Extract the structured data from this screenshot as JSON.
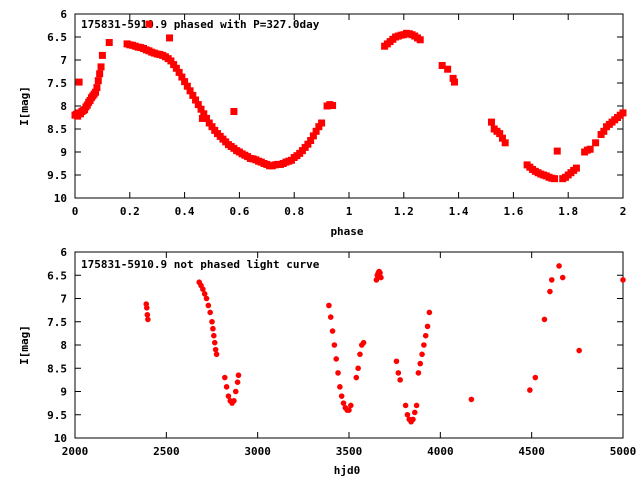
{
  "chart_data": [
    {
      "type": "scatter",
      "title": "175831-5910.9 phased with P=327.0day",
      "xlabel": "phase",
      "ylabel": "I[mag]",
      "xlim": [
        0,
        2
      ],
      "ylim": [
        10,
        6
      ],
      "y_inverted": true,
      "x_ticks": [
        "0",
        "0.2",
        "0.4",
        "0.6",
        "0.8",
        "1",
        "1.2",
        "1.4",
        "1.6",
        "1.8",
        "2"
      ],
      "y_ticks": [
        "6",
        "6.5",
        "7",
        "7.5",
        "8",
        "8.5",
        "9",
        "9.5",
        "10"
      ],
      "grid": false,
      "marker_color": "#ff0000",
      "series": [
        {
          "points": [
            [
              0.0,
              8.2
            ],
            [
              0.005,
              8.18
            ],
            [
              0.01,
              8.22
            ],
            [
              0.015,
              8.15
            ],
            [
              0.02,
              8.17
            ],
            [
              0.025,
              8.12
            ],
            [
              0.03,
              8.1
            ],
            [
              0.035,
              8.08
            ],
            [
              0.04,
              8.02
            ],
            [
              0.045,
              7.98
            ],
            [
              0.05,
              7.92
            ],
            [
              0.055,
              7.88
            ],
            [
              0.06,
              7.82
            ],
            [
              0.065,
              7.78
            ],
            [
              0.07,
              7.74
            ],
            [
              0.075,
              7.7
            ],
            [
              0.08,
              7.6
            ],
            [
              0.085,
              7.45
            ],
            [
              0.09,
              7.3
            ],
            [
              0.095,
              7.15
            ],
            [
              0.1,
              6.9
            ],
            [
              0.125,
              6.62
            ],
            [
              0.015,
              7.48
            ],
            [
              0.19,
              6.65
            ],
            [
              0.2,
              6.67
            ],
            [
              0.21,
              6.68
            ],
            [
              0.22,
              6.7
            ],
            [
              0.23,
              6.72
            ],
            [
              0.24,
              6.73
            ],
            [
              0.25,
              6.75
            ],
            [
              0.26,
              6.78
            ],
            [
              0.27,
              6.8
            ],
            [
              0.28,
              6.83
            ],
            [
              0.29,
              6.85
            ],
            [
              0.3,
              6.87
            ],
            [
              0.31,
              6.88
            ],
            [
              0.32,
              6.9
            ],
            [
              0.33,
              6.93
            ],
            [
              0.34,
              6.97
            ],
            [
              0.35,
              7.02
            ],
            [
              0.36,
              7.1
            ],
            [
              0.37,
              7.18
            ],
            [
              0.38,
              7.27
            ],
            [
              0.39,
              7.37
            ],
            [
              0.4,
              7.47
            ],
            [
              0.41,
              7.57
            ],
            [
              0.42,
              7.67
            ],
            [
              0.43,
              7.77
            ],
            [
              0.44,
              7.87
            ],
            [
              0.45,
              7.97
            ],
            [
              0.46,
              8.07
            ],
            [
              0.47,
              8.17
            ],
            [
              0.48,
              8.27
            ],
            [
              0.49,
              8.37
            ],
            [
              0.5,
              8.45
            ],
            [
              0.51,
              8.53
            ],
            [
              0.52,
              8.6
            ],
            [
              0.53,
              8.66
            ],
            [
              0.54,
              8.72
            ],
            [
              0.55,
              8.78
            ],
            [
              0.56,
              8.84
            ],
            [
              0.57,
              8.88
            ],
            [
              0.58,
              8.92
            ],
            [
              0.59,
              8.97
            ],
            [
              0.6,
              9.0
            ],
            [
              0.61,
              9.04
            ],
            [
              0.62,
              9.07
            ],
            [
              0.63,
              9.1
            ],
            [
              0.64,
              9.14
            ],
            [
              0.65,
              9.15
            ],
            [
              0.66,
              9.17
            ],
            [
              0.67,
              9.2
            ],
            [
              0.68,
              9.22
            ],
            [
              0.69,
              9.25
            ],
            [
              0.7,
              9.27
            ],
            [
              0.71,
              9.3
            ],
            [
              0.72,
              9.3
            ],
            [
              0.73,
              9.28
            ],
            [
              0.74,
              9.27
            ],
            [
              0.75,
              9.27
            ],
            [
              0.76,
              9.25
            ],
            [
              0.77,
              9.22
            ],
            [
              0.78,
              9.2
            ],
            [
              0.79,
              9.18
            ],
            [
              0.8,
              9.12
            ],
            [
              0.81,
              9.08
            ],
            [
              0.82,
              9.03
            ],
            [
              0.83,
              8.97
            ],
            [
              0.84,
              8.9
            ],
            [
              0.85,
              8.83
            ],
            [
              0.86,
              8.75
            ],
            [
              0.87,
              8.65
            ],
            [
              0.88,
              8.55
            ],
            [
              0.89,
              8.45
            ],
            [
              0.9,
              8.37
            ],
            [
              0.92,
              8.0
            ],
            [
              0.93,
              7.97
            ],
            [
              0.94,
              7.99
            ],
            [
              0.27,
              6.22
            ],
            [
              0.345,
              6.52
            ],
            [
              0.465,
              8.27
            ],
            [
              0.58,
              8.12
            ],
            [
              1.13,
              6.7
            ],
            [
              1.14,
              6.65
            ],
            [
              1.15,
              6.6
            ],
            [
              1.16,
              6.55
            ],
            [
              1.17,
              6.5
            ],
            [
              1.18,
              6.48
            ],
            [
              1.19,
              6.46
            ],
            [
              1.2,
              6.45
            ],
            [
              1.21,
              6.42
            ],
            [
              1.22,
              6.43
            ],
            [
              1.23,
              6.45
            ],
            [
              1.24,
              6.48
            ],
            [
              1.25,
              6.52
            ],
            [
              1.26,
              6.56
            ],
            [
              1.34,
              7.12
            ],
            [
              1.36,
              7.2
            ],
            [
              1.38,
              7.4
            ],
            [
              1.385,
              7.48
            ],
            [
              1.52,
              8.35
            ],
            [
              1.53,
              8.5
            ],
            [
              1.54,
              8.55
            ],
            [
              1.55,
              8.6
            ],
            [
              1.56,
              8.7
            ],
            [
              1.57,
              8.8
            ],
            [
              1.65,
              9.28
            ],
            [
              1.66,
              9.33
            ],
            [
              1.67,
              9.38
            ],
            [
              1.68,
              9.42
            ],
            [
              1.69,
              9.45
            ],
            [
              1.7,
              9.48
            ],
            [
              1.71,
              9.5
            ],
            [
              1.72,
              9.52
            ],
            [
              1.73,
              9.55
            ],
            [
              1.74,
              9.57
            ],
            [
              1.75,
              9.58
            ],
            [
              1.76,
              8.98
            ],
            [
              1.78,
              9.58
            ],
            [
              1.79,
              9.55
            ],
            [
              1.8,
              9.5
            ],
            [
              1.81,
              9.45
            ],
            [
              1.82,
              9.4
            ],
            [
              1.83,
              9.35
            ],
            [
              1.86,
              9.0
            ],
            [
              1.87,
              8.96
            ],
            [
              1.88,
              8.94
            ],
            [
              1.9,
              8.8
            ],
            [
              1.92,
              8.62
            ],
            [
              1.93,
              8.55
            ],
            [
              1.94,
              8.45
            ],
            [
              1.95,
              8.4
            ],
            [
              1.96,
              8.35
            ],
            [
              1.97,
              8.3
            ],
            [
              1.98,
              8.25
            ],
            [
              1.99,
              8.2
            ],
            [
              2.0,
              8.15
            ]
          ]
        }
      ]
    },
    {
      "type": "scatter",
      "title": "175831-5910.9 not phased light curve",
      "xlabel": "hjd0",
      "ylabel": "I[mag]",
      "xlim": [
        2000,
        5000
      ],
      "ylim": [
        10,
        6
      ],
      "y_inverted": true,
      "x_ticks": [
        "2000",
        "2500",
        "3000",
        "3500",
        "4000",
        "4500",
        "5000"
      ],
      "y_ticks": [
        "6",
        "6.5",
        "7",
        "7.5",
        "8",
        "8.5",
        "9",
        "9.5",
        "10"
      ],
      "grid": false,
      "marker_color": "#ff0000",
      "series": [
        {
          "points": [
            [
              2390,
              7.12
            ],
            [
              2393,
              7.2
            ],
            [
              2396,
              7.35
            ],
            [
              2399,
              7.45
            ],
            [
              2680,
              6.65
            ],
            [
              2690,
              6.72
            ],
            [
              2700,
              6.8
            ],
            [
              2710,
              6.9
            ],
            [
              2720,
              7.0
            ],
            [
              2730,
              7.15
            ],
            [
              2740,
              7.3
            ],
            [
              2750,
              7.5
            ],
            [
              2755,
              7.65
            ],
            [
              2760,
              7.8
            ],
            [
              2765,
              7.95
            ],
            [
              2770,
              8.1
            ],
            [
              2775,
              8.2
            ],
            [
              2820,
              8.7
            ],
            [
              2830,
              8.9
            ],
            [
              2840,
              9.1
            ],
            [
              2850,
              9.2
            ],
            [
              2860,
              9.25
            ],
            [
              2870,
              9.2
            ],
            [
              2880,
              9.0
            ],
            [
              2890,
              8.8
            ],
            [
              2895,
              8.65
            ],
            [
              3390,
              7.15
            ],
            [
              3400,
              7.4
            ],
            [
              3410,
              7.7
            ],
            [
              3420,
              8.0
            ],
            [
              3430,
              8.3
            ],
            [
              3440,
              8.6
            ],
            [
              3450,
              8.9
            ],
            [
              3460,
              9.1
            ],
            [
              3470,
              9.25
            ],
            [
              3480,
              9.35
            ],
            [
              3490,
              9.4
            ],
            [
              3500,
              9.4
            ],
            [
              3510,
              9.3
            ],
            [
              3540,
              8.7
            ],
            [
              3550,
              8.5
            ],
            [
              3560,
              8.2
            ],
            [
              3570,
              8.0
            ],
            [
              3580,
              7.95
            ],
            [
              3650,
              6.6
            ],
            [
              3655,
              6.5
            ],
            [
              3660,
              6.45
            ],
            [
              3665,
              6.42
            ],
            [
              3670,
              6.45
            ],
            [
              3675,
              6.55
            ],
            [
              3760,
              8.35
            ],
            [
              3770,
              8.6
            ],
            [
              3780,
              8.75
            ],
            [
              3810,
              9.3
            ],
            [
              3820,
              9.5
            ],
            [
              3830,
              9.6
            ],
            [
              3840,
              9.65
            ],
            [
              3850,
              9.6
            ],
            [
              3860,
              9.45
            ],
            [
              3870,
              9.3
            ],
            [
              3880,
              8.6
            ],
            [
              3890,
              8.4
            ],
            [
              3900,
              8.2
            ],
            [
              3910,
              8.0
            ],
            [
              3920,
              7.8
            ],
            [
              3930,
              7.6
            ],
            [
              3940,
              7.3
            ],
            [
              4170,
              9.17
            ],
            [
              4490,
              8.97
            ],
            [
              4520,
              8.7
            ],
            [
              4570,
              7.45
            ],
            [
              4600,
              6.85
            ],
            [
              4610,
              6.6
            ],
            [
              4650,
              6.3
            ],
            [
              4670,
              6.55
            ],
            [
              4760,
              8.12
            ],
            [
              5000,
              6.6
            ]
          ]
        }
      ]
    }
  ]
}
